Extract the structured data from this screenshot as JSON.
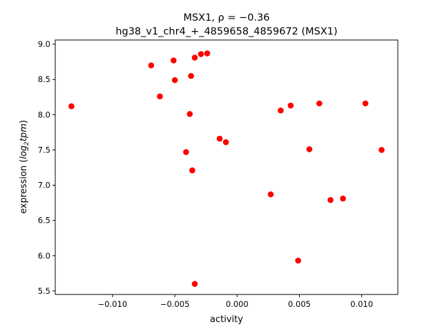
{
  "chart_data": {
    "type": "scatter",
    "title_line1": "MSX1, ρ = −0.36",
    "title_line2": "hg38_v1_chr4_+_4859658_4859672 (MSX1)",
    "xlabel": "activity",
    "ylabel_prefix": "expression (",
    "ylabel_italic": "log",
    "ylabel_sub": "2",
    "ylabel_italic2": "tpm",
    "ylabel_suffix": ")",
    "xlim": [
      -0.0146,
      0.0129
    ],
    "ylim": [
      5.45,
      9.06
    ],
    "xticks": [
      -0.01,
      -0.005,
      0.0,
      0.005,
      0.01
    ],
    "xtick_labels": [
      "−0.010",
      "−0.005",
      "0.000",
      "0.005",
      "0.010"
    ],
    "yticks": [
      5.5,
      6.0,
      6.5,
      7.0,
      7.5,
      8.0,
      8.5,
      9.0
    ],
    "ytick_labels": [
      "5.5",
      "6.0",
      "6.5",
      "7.0",
      "7.5",
      "8.0",
      "8.5",
      "9.0"
    ],
    "grid": false,
    "marker_color": "#ff0000",
    "points": [
      {
        "x": -0.0133,
        "y": 8.12
      },
      {
        "x": -0.0069,
        "y": 8.7
      },
      {
        "x": -0.0062,
        "y": 8.26
      },
      {
        "x": -0.0051,
        "y": 8.77
      },
      {
        "x": -0.005,
        "y": 8.49
      },
      {
        "x": -0.0041,
        "y": 7.47
      },
      {
        "x": -0.0038,
        "y": 8.01
      },
      {
        "x": -0.0037,
        "y": 8.55
      },
      {
        "x": -0.0036,
        "y": 7.21
      },
      {
        "x": -0.0034,
        "y": 8.81
      },
      {
        "x": -0.0034,
        "y": 5.6
      },
      {
        "x": -0.0029,
        "y": 8.86
      },
      {
        "x": -0.0024,
        "y": 8.87
      },
      {
        "x": -0.0014,
        "y": 7.66
      },
      {
        "x": -0.0009,
        "y": 7.61
      },
      {
        "x": 0.0027,
        "y": 6.87
      },
      {
        "x": 0.0035,
        "y": 8.06
      },
      {
        "x": 0.0043,
        "y": 8.13
      },
      {
        "x": 0.0049,
        "y": 5.93
      },
      {
        "x": 0.0058,
        "y": 7.51
      },
      {
        "x": 0.0066,
        "y": 8.16
      },
      {
        "x": 0.0075,
        "y": 6.79
      },
      {
        "x": 0.0085,
        "y": 6.81
      },
      {
        "x": 0.0103,
        "y": 8.16
      },
      {
        "x": 0.0116,
        "y": 7.5
      }
    ]
  }
}
